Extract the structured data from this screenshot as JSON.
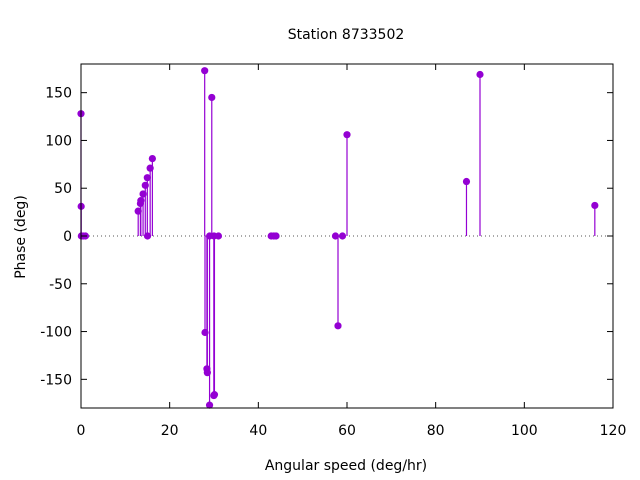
{
  "chart_data": {
    "type": "stem",
    "title": "Station 8733502",
    "xlabel": "Angular speed (deg/hr)",
    "ylabel": "Phase (deg)",
    "xlim": [
      0,
      120
    ],
    "ylim": [
      -180,
      180
    ],
    "xticks": [
      0,
      20,
      40,
      60,
      80,
      100,
      120
    ],
    "xtick_labels": [
      "0",
      "20",
      "40",
      "60",
      "80",
      "100",
      "120"
    ],
    "yticks": [
      -150,
      -100,
      -50,
      0,
      50,
      100,
      150
    ],
    "ytick_labels": [
      "-150",
      "-100",
      "-50",
      "0",
      "50",
      "100",
      "150"
    ],
    "zero_line": "dotted",
    "grid": false,
    "color": "#9400d3",
    "points": [
      {
        "x": 0.0,
        "y": 128
      },
      {
        "x": 0.04,
        "y": 31
      },
      {
        "x": 0.08,
        "y": 0
      },
      {
        "x": 0.5,
        "y": 0
      },
      {
        "x": 1.0,
        "y": 0
      },
      {
        "x": 12.9,
        "y": 26
      },
      {
        "x": 13.4,
        "y": 34
      },
      {
        "x": 13.5,
        "y": 37
      },
      {
        "x": 14.0,
        "y": 44
      },
      {
        "x": 14.5,
        "y": 53
      },
      {
        "x": 14.96,
        "y": 61
      },
      {
        "x": 15.0,
        "y": 0
      },
      {
        "x": 15.6,
        "y": 71
      },
      {
        "x": 16.1,
        "y": 81
      },
      {
        "x": 27.9,
        "y": 173
      },
      {
        "x": 27.97,
        "y": -101
      },
      {
        "x": 28.4,
        "y": -139
      },
      {
        "x": 28.5,
        "y": -143
      },
      {
        "x": 29.0,
        "y": -177
      },
      {
        "x": 29.0,
        "y": 0
      },
      {
        "x": 29.5,
        "y": 145
      },
      {
        "x": 29.96,
        "y": -167
      },
      {
        "x": 30.0,
        "y": 0
      },
      {
        "x": 30.1,
        "y": -166
      },
      {
        "x": 31.0,
        "y": 0
      },
      {
        "x": 42.9,
        "y": 0
      },
      {
        "x": 43.5,
        "y": 0
      },
      {
        "x": 44.0,
        "y": 0
      },
      {
        "x": 57.4,
        "y": 0
      },
      {
        "x": 57.97,
        "y": -94
      },
      {
        "x": 58.98,
        "y": 0
      },
      {
        "x": 60.0,
        "y": 106
      },
      {
        "x": 86.95,
        "y": 57
      },
      {
        "x": 90.0,
        "y": 169
      },
      {
        "x": 115.9,
        "y": 32
      }
    ]
  }
}
